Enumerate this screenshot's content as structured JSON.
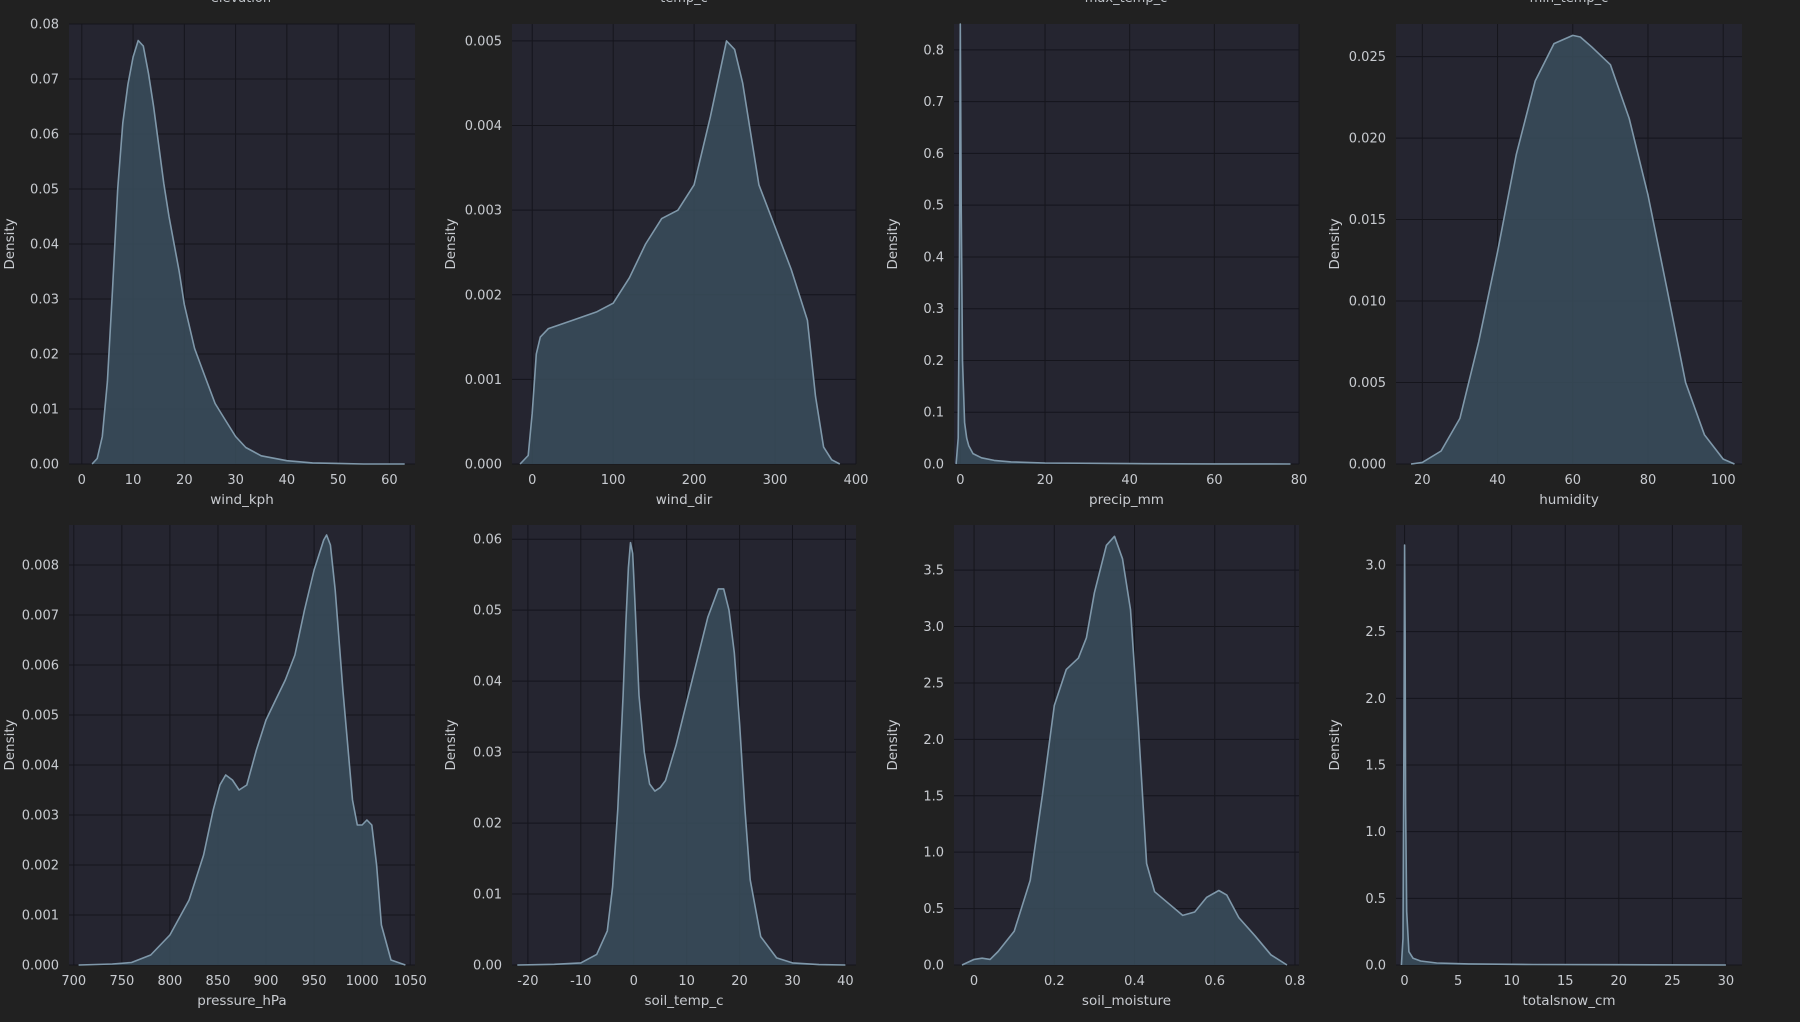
{
  "figure": {
    "background": "#212121",
    "panel_background": "#252530",
    "grid_color": "#15151c",
    "line_color": "#7f98aa",
    "fill_color": "#3a4d5c",
    "text_color": "#c8cbd0",
    "clipped_titles": [
      "elevation",
      "temp_c",
      "max_temp_c",
      "min_temp_c"
    ]
  },
  "chart_data": [
    {
      "type": "area",
      "title": "",
      "xlabel": "wind_kph",
      "ylabel": "Density",
      "xlim": [
        -2.5,
        65
      ],
      "ylim": [
        0,
        0.08
      ],
      "xticks": [
        0,
        10,
        20,
        30,
        40,
        50,
        60
      ],
      "yticks": [
        0.0,
        0.01,
        0.02,
        0.03,
        0.04,
        0.05,
        0.06,
        0.07,
        0.08
      ],
      "ytick_labels": [
        "0.00",
        "0.01",
        "0.02",
        "0.03",
        "0.04",
        "0.05",
        "0.06",
        "0.07",
        "0.08"
      ],
      "series": [
        {
          "x": [
            2,
            3,
            4,
            5,
            6,
            7,
            8,
            9,
            10,
            11,
            12,
            13,
            14,
            15,
            16,
            17,
            18,
            19,
            20,
            22,
            24,
            26,
            28,
            30,
            32,
            35,
            40,
            45,
            50,
            55,
            60,
            63
          ],
          "y": [
            0,
            0.001,
            0.005,
            0.015,
            0.032,
            0.05,
            0.062,
            0.069,
            0.074,
            0.077,
            0.076,
            0.071,
            0.065,
            0.058,
            0.051,
            0.045,
            0.04,
            0.035,
            0.029,
            0.021,
            0.016,
            0.011,
            0.008,
            0.005,
            0.003,
            0.0015,
            0.0006,
            0.0002,
            0.0001,
            0,
            0,
            0
          ]
        }
      ]
    },
    {
      "type": "area",
      "title": "",
      "xlabel": "wind_dir",
      "ylabel": "Density",
      "xlim": [
        -25,
        400
      ],
      "ylim": [
        0,
        0.0052
      ],
      "xticks": [
        0,
        100,
        200,
        300,
        400
      ],
      "yticks": [
        0,
        0.001,
        0.002,
        0.003,
        0.004,
        0.005
      ],
      "ytick_labels": [
        "0.000",
        "0.001",
        "0.002",
        "0.003",
        "0.004",
        "0.005"
      ],
      "series": [
        {
          "x": [
            -15,
            -5,
            0,
            5,
            10,
            20,
            50,
            80,
            100,
            120,
            140,
            160,
            180,
            200,
            220,
            240,
            250,
            260,
            280,
            300,
            320,
            340,
            350,
            360,
            370,
            380
          ],
          "y": [
            0,
            0.0001,
            0.0006,
            0.0013,
            0.0015,
            0.0016,
            0.0017,
            0.0018,
            0.0019,
            0.0022,
            0.0026,
            0.0029,
            0.003,
            0.0033,
            0.0041,
            0.005,
            0.0049,
            0.0045,
            0.0033,
            0.0028,
            0.0023,
            0.0017,
            0.0008,
            0.0002,
            5e-05,
            0
          ]
        }
      ]
    },
    {
      "type": "area",
      "title": "",
      "xlabel": "precip_mm",
      "ylabel": "Density",
      "xlim": [
        -1.5,
        80
      ],
      "ylim": [
        0,
        0.85
      ],
      "xticks": [
        0,
        20,
        40,
        60,
        80
      ],
      "yticks": [
        0,
        0.1,
        0.2,
        0.3,
        0.4,
        0.5,
        0.6,
        0.7,
        0.8
      ],
      "ytick_labels": [
        "0.0",
        "0.1",
        "0.2",
        "0.3",
        "0.4",
        "0.5",
        "0.6",
        "0.7",
        "0.8"
      ],
      "series": [
        {
          "x": [
            -1,
            -0.5,
            -0.2,
            0,
            0.2,
            0.5,
            1,
            1.5,
            2,
            3,
            5,
            8,
            12,
            20,
            40,
            60,
            78
          ],
          "y": [
            0,
            0.05,
            0.4,
            0.85,
            0.5,
            0.2,
            0.08,
            0.05,
            0.035,
            0.02,
            0.012,
            0.007,
            0.004,
            0.002,
            0.0008,
            0.0002,
            0
          ]
        }
      ]
    },
    {
      "type": "area",
      "title": "",
      "xlabel": "humidity",
      "ylabel": "Density",
      "xlim": [
        13,
        105
      ],
      "ylim": [
        0,
        0.027
      ],
      "xticks": [
        20,
        40,
        60,
        80,
        100
      ],
      "yticks": [
        0,
        0.005,
        0.01,
        0.015,
        0.02,
        0.025
      ],
      "ytick_labels": [
        "0.000",
        "0.005",
        "0.010",
        "0.015",
        "0.020",
        "0.025"
      ],
      "series": [
        {
          "x": [
            17,
            20,
            25,
            30,
            35,
            40,
            45,
            50,
            55,
            60,
            62,
            65,
            70,
            75,
            80,
            85,
            90,
            95,
            100,
            103
          ],
          "y": [
            0,
            0.0001,
            0.0008,
            0.0028,
            0.0075,
            0.013,
            0.019,
            0.0235,
            0.0258,
            0.0263,
            0.0262,
            0.0256,
            0.0245,
            0.0212,
            0.0165,
            0.0108,
            0.005,
            0.0018,
            0.0003,
            0
          ]
        }
      ]
    },
    {
      "type": "area",
      "title": "",
      "xlabel": "pressure_hPa",
      "ylabel": "Density",
      "xlim": [
        695,
        1055
      ],
      "ylim": [
        0,
        0.0088
      ],
      "xticks": [
        700,
        750,
        800,
        850,
        900,
        950,
        1000,
        1050
      ],
      "yticks": [
        0,
        0.001,
        0.002,
        0.003,
        0.004,
        0.005,
        0.006,
        0.007,
        0.008
      ],
      "ytick_labels": [
        "0.000",
        "0.001",
        "0.002",
        "0.003",
        "0.004",
        "0.005",
        "0.006",
        "0.007",
        "0.008"
      ],
      "series": [
        {
          "x": [
            705,
            740,
            760,
            780,
            800,
            820,
            835,
            845,
            852,
            858,
            865,
            872,
            880,
            890,
            900,
            910,
            920,
            930,
            940,
            950,
            955,
            960,
            963,
            967,
            972,
            980,
            990,
            995,
            1000,
            1005,
            1010,
            1015,
            1020,
            1030,
            1045
          ],
          "y": [
            0,
            2e-05,
            5e-05,
            0.0002,
            0.0006,
            0.0013,
            0.0022,
            0.0031,
            0.0036,
            0.0038,
            0.0037,
            0.0035,
            0.0036,
            0.0043,
            0.0049,
            0.0053,
            0.0057,
            0.0062,
            0.0071,
            0.0079,
            0.0082,
            0.0085,
            0.0086,
            0.0084,
            0.0075,
            0.0055,
            0.0033,
            0.0028,
            0.0028,
            0.0029,
            0.0028,
            0.002,
            0.0008,
            0.0001,
            0
          ]
        }
      ]
    },
    {
      "type": "area",
      "title": "",
      "xlabel": "soil_temp_c",
      "ylabel": "Density",
      "xlim": [
        -23,
        42
      ],
      "ylim": [
        0,
        0.062
      ],
      "xticks": [
        -20,
        -10,
        0,
        10,
        20,
        30,
        40
      ],
      "yticks": [
        0,
        0.01,
        0.02,
        0.03,
        0.04,
        0.05,
        0.06
      ],
      "ytick_labels": [
        "0.00",
        "0.01",
        "0.02",
        "0.03",
        "0.04",
        "0.05",
        "0.06"
      ],
      "series": [
        {
          "x": [
            -22,
            -15,
            -10,
            -7,
            -5,
            -4,
            -3,
            -2,
            -1.5,
            -1,
            -0.6,
            -0.2,
            0.3,
            1,
            2,
            3,
            4,
            5,
            6,
            8,
            10,
            12,
            14,
            16,
            17,
            18,
            19,
            20,
            21,
            22,
            24,
            27,
            30,
            35,
            40
          ],
          "y": [
            0,
            0.0001,
            0.0003,
            0.0015,
            0.0048,
            0.011,
            0.022,
            0.038,
            0.048,
            0.056,
            0.0595,
            0.058,
            0.05,
            0.038,
            0.03,
            0.0255,
            0.0245,
            0.025,
            0.026,
            0.031,
            0.037,
            0.043,
            0.049,
            0.053,
            0.053,
            0.05,
            0.044,
            0.034,
            0.022,
            0.012,
            0.004,
            0.001,
            0.0003,
            5e-05,
            0
          ]
        }
      ]
    },
    {
      "type": "area",
      "title": "",
      "xlabel": "soil_moisture",
      "ylabel": "Density",
      "xlim": [
        -0.05,
        0.81
      ],
      "ylim": [
        0,
        3.9
      ],
      "xticks": [
        0.0,
        0.2,
        0.4,
        0.6,
        0.8
      ],
      "yticks": [
        0,
        0.5,
        1.0,
        1.5,
        2.0,
        2.5,
        3.0,
        3.5
      ],
      "ytick_labels": [
        "0.0",
        "0.5",
        "1.0",
        "1.5",
        "2.0",
        "2.5",
        "3.0",
        "3.5"
      ],
      "series": [
        {
          "x": [
            -0.03,
            0,
            0.02,
            0.04,
            0.06,
            0.1,
            0.14,
            0.17,
            0.2,
            0.23,
            0.26,
            0.28,
            0.3,
            0.33,
            0.35,
            0.37,
            0.39,
            0.41,
            0.43,
            0.45,
            0.48,
            0.52,
            0.55,
            0.58,
            0.61,
            0.63,
            0.66,
            0.7,
            0.74,
            0.78
          ],
          "y": [
            0,
            0.05,
            0.06,
            0.05,
            0.12,
            0.3,
            0.75,
            1.5,
            2.3,
            2.62,
            2.72,
            2.9,
            3.3,
            3.72,
            3.8,
            3.6,
            3.15,
            2.1,
            0.9,
            0.65,
            0.56,
            0.44,
            0.47,
            0.6,
            0.66,
            0.62,
            0.42,
            0.26,
            0.09,
            0
          ]
        }
      ]
    },
    {
      "type": "area",
      "title": "",
      "xlabel": "totalsnow_cm",
      "ylabel": "Density",
      "xlim": [
        -0.8,
        31.5
      ],
      "ylim": [
        0,
        3.3
      ],
      "xticks": [
        0,
        5,
        10,
        15,
        20,
        25,
        30
      ],
      "yticks": [
        0,
        0.5,
        1.0,
        1.5,
        2.0,
        2.5,
        3.0
      ],
      "ytick_labels": [
        "0.0",
        "0.5",
        "1.0",
        "1.5",
        "2.0",
        "2.5",
        "3.0"
      ],
      "series": [
        {
          "x": [
            -0.3,
            -0.15,
            -0.05,
            0,
            0.05,
            0.1,
            0.2,
            0.4,
            0.8,
            1.5,
            3,
            6,
            12,
            20,
            30
          ],
          "y": [
            0,
            0.2,
            1.8,
            3.15,
            2.5,
            1.2,
            0.4,
            0.1,
            0.05,
            0.03,
            0.015,
            0.008,
            0.004,
            0.002,
            0
          ]
        }
      ]
    }
  ]
}
